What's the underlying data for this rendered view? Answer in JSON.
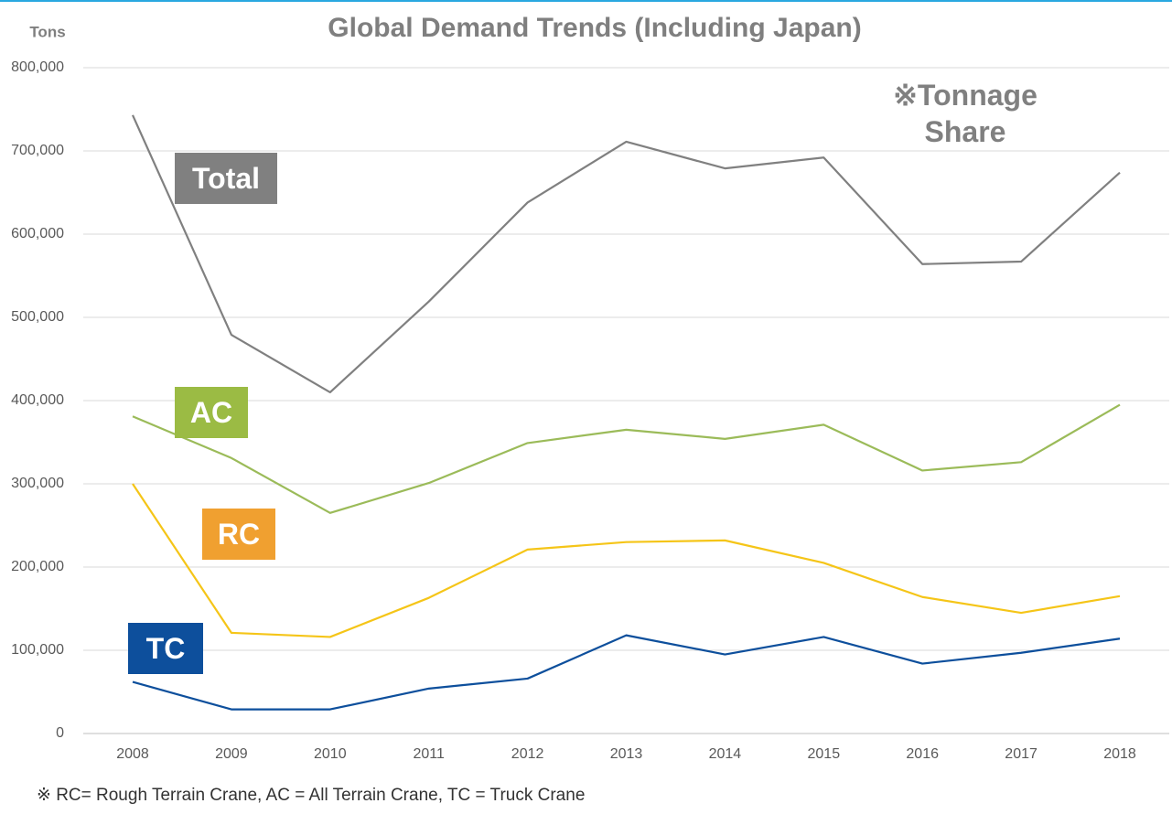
{
  "chart_data": {
    "type": "line",
    "title": "Global Demand Trends (Including Japan)",
    "y_label": "Tons",
    "annotation": "※Tonnage Share",
    "footnote": "※ RC= Rough Terrain Crane, AC = All Terrain Crane, TC = Truck Crane",
    "categories": [
      "2008",
      "2009",
      "2010",
      "2011",
      "2012",
      "2013",
      "2014",
      "2015",
      "2016",
      "2017",
      "2018"
    ],
    "series": [
      {
        "name": "Total",
        "color": "#808080",
        "label_color": "#808080",
        "values": [
          743000,
          479000,
          410000,
          519000,
          638000,
          711000,
          679000,
          692000,
          564000,
          567000,
          674000
        ]
      },
      {
        "name": "AC",
        "color": "#9bbb59",
        "label_color": "#9bbb44",
        "values": [
          381000,
          331000,
          265000,
          301000,
          349000,
          365000,
          354000,
          371000,
          316000,
          326000,
          395000
        ]
      },
      {
        "name": "RC",
        "color": "#f5c518",
        "label_color": "#f0a030",
        "values": [
          300000,
          121000,
          116000,
          163000,
          221000,
          230000,
          232000,
          205000,
          164000,
          145000,
          165000
        ]
      },
      {
        "name": "TC",
        "color": "#0d4f9c",
        "label_color": "#0d4f9c",
        "values": [
          62000,
          29000,
          29000,
          54000,
          66000,
          118000,
          95000,
          116000,
          84000,
          97000,
          114000
        ]
      }
    ],
    "ylim": [
      0,
      800000
    ],
    "yticks": [
      0,
      {
        "value": 100000,
        "label": "100,000"
      },
      {
        "value": 200000,
        "label": "200,000"
      },
      {
        "value": 300000,
        "label": "300,000"
      },
      {
        "value": 400000,
        "label": "400,000"
      },
      {
        "value": 500000,
        "label": "500,000"
      },
      {
        "value": 600000,
        "label": "600,000"
      },
      {
        "value": 700000,
        "label": "700,000"
      },
      {
        "value": 800000,
        "label": "800,000"
      }
    ],
    "grid": true
  }
}
